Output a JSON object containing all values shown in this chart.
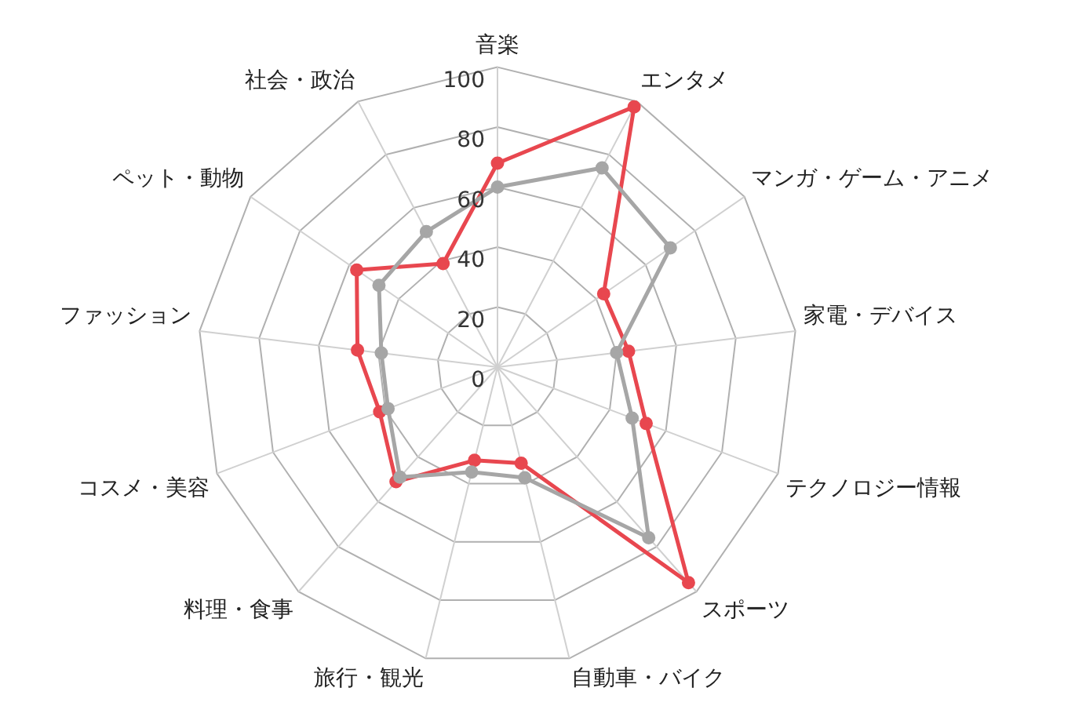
{
  "chart_data": {
    "type": "radar",
    "categories": [
      "音楽",
      "エンタメ",
      "マンガ・ゲーム・アニメ",
      "家電・デバイス",
      "テクノロジー情報",
      "スポーツ",
      "自動車・バイク",
      "旅行・観光",
      "料理・食事",
      "コスメ・美容",
      "ファッション",
      "ペット・動物",
      "社会・政治"
    ],
    "series": [
      {
        "color": "#a6a6a6",
        "values": [
          60,
          75,
          70,
          40,
          48,
          76,
          38,
          36,
          49,
          39,
          39,
          48,
          51
        ]
      },
      {
        "color": "#e8474f",
        "values": [
          68,
          98,
          43,
          44,
          53,
          96,
          33,
          32,
          51,
          42,
          47,
          57,
          39
        ]
      }
    ],
    "ylim": [
      0,
      100
    ],
    "yticks": [
      0,
      20,
      40,
      60,
      80,
      100
    ],
    "grid": true,
    "legend": false,
    "marker": "circle"
  }
}
